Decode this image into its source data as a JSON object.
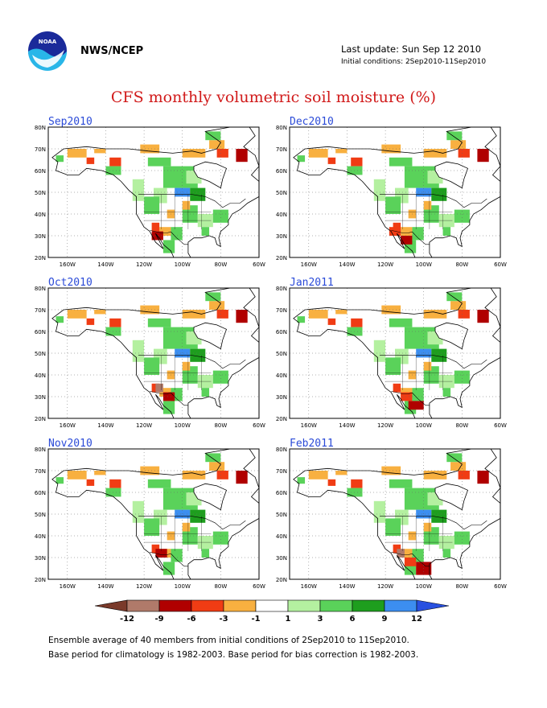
{
  "header": {
    "org": "NWS/NCEP",
    "last_update": "Last update: Sun Sep 12 2010",
    "initial_conditions": "Initial conditions: 2Sep2010-11Sep2010",
    "title": "CFS monthly volumetric soil moisture (%)"
  },
  "panels": [
    {
      "label": "Sep2010"
    },
    {
      "label": "Dec2010"
    },
    {
      "label": "Oct2010"
    },
    {
      "label": "Jan2011"
    },
    {
      "label": "Nov2010"
    },
    {
      "label": "Feb2011"
    }
  ],
  "axes": {
    "lat_labels": [
      "80N",
      "70N",
      "60N",
      "50N",
      "40N",
      "30N",
      "20N"
    ],
    "lon_labels": [
      "160W",
      "140W",
      "120W",
      "100W",
      "80W",
      "60W"
    ]
  },
  "colorbar": {
    "labels": [
      "-12",
      "-9",
      "-6",
      "-3",
      "-1",
      "1",
      "3",
      "6",
      "9",
      "12"
    ],
    "colors": [
      "#7a3a2a",
      "#b07a6a",
      "#b00000",
      "#f03c14",
      "#f8b040",
      "#ffffff",
      "#b4f0a0",
      "#5ad25a",
      "#1e9e1e",
      "#3c8ef0",
      "#2850e0"
    ]
  },
  "footer": {
    "line1": "Ensemble average of 40 members from initial conditions of 2Sep2010 to 11Sep2010.",
    "line2": "Base period for climatology is 1982-2003. Base period for bias correction is 1982-2003."
  }
}
